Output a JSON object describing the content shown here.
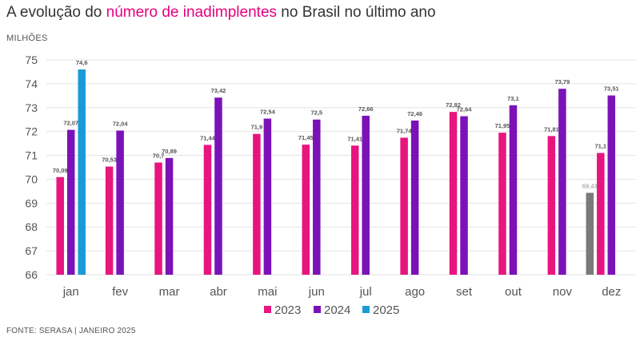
{
  "title": {
    "prefix": "A evolução do ",
    "highlight": "número de inadimplentes",
    "suffix": " no Brasil no último ano"
  },
  "unit_label": "MILHÕES",
  "source": "FONTE: SERASA | JANEIRO 2025",
  "colors": {
    "2023": "#e8157f",
    "2024": "#7b12b8",
    "2025": "#1a9ad6",
    "dez_2022": "#7a7a7a",
    "grid": "#e3e3e3",
    "highlight": "#e6007e"
  },
  "chart_data": {
    "type": "bar",
    "title": "A evolução do número de inadimplentes no Brasil no último ano",
    "ylabel": "MILHÕES",
    "ylim": [
      66,
      75
    ],
    "yticks": [
      66,
      67,
      68,
      69,
      70,
      71,
      72,
      73,
      74,
      75
    ],
    "grid": true,
    "legend_position": "bottom-center",
    "categories": [
      "jan",
      "fev",
      "mar",
      "abr",
      "mai",
      "jun",
      "jul",
      "ago",
      "set",
      "out",
      "nov",
      "dez"
    ],
    "series": [
      {
        "name": "2023",
        "values": [
          70.09,
          70.53,
          70.7,
          71.44,
          71.9,
          71.45,
          71.41,
          71.74,
          72.82,
          71.95,
          71.81,
          71.1
        ],
        "labels": [
          "70,09",
          "70,53",
          "70,7",
          "71,44",
          "71,9",
          "71,45",
          "71,41",
          "71,74",
          "72,82",
          "71,95",
          "71,81",
          "71,1"
        ]
      },
      {
        "name": "2024",
        "values": [
          72.07,
          72.04,
          70.89,
          73.42,
          72.54,
          72.5,
          72.66,
          72.46,
          72.64,
          73.1,
          73.79,
          73.51
        ],
        "labels": [
          "72,07",
          "72,04",
          "70,89",
          "73,42",
          "72,54",
          "72,5",
          "72,66",
          "72,46",
          "72,64",
          "73,1",
          "73,79",
          "73,51"
        ]
      },
      {
        "name": "2025",
        "values": [
          74.6,
          null,
          null,
          null,
          null,
          null,
          null,
          null,
          null,
          null,
          null,
          null
        ],
        "labels": [
          "74,6",
          null,
          null,
          null,
          null,
          null,
          null,
          null,
          null,
          null,
          null,
          null
        ]
      }
    ],
    "extra_bar": {
      "category": "dez",
      "value": 69.43,
      "label": "69,43",
      "note": "unlabeled grey bar"
    },
    "legend": [
      "2023",
      "2024",
      "2025"
    ]
  }
}
